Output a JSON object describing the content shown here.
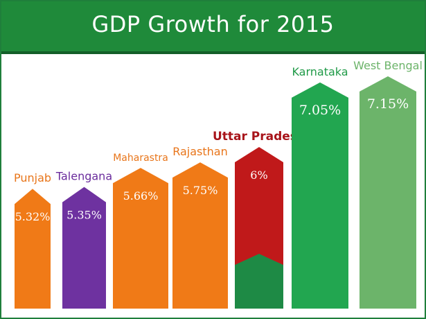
{
  "chart_data": {
    "type": "bar",
    "title": "GDP Growth for 2015",
    "categories": [
      "Punjab",
      "Talengana",
      "Maharastra",
      "Rajasthan",
      "Uttar Pradesh",
      "Karnataka",
      "West Bengal"
    ],
    "values": [
      5.32,
      5.35,
      5.66,
      5.75,
      6.0,
      7.05,
      7.15
    ],
    "value_labels": [
      "5.32%",
      "5.35%",
      "5.66%",
      "5.75%",
      "6%",
      "7.05%",
      "7.15%"
    ],
    "colors": [
      "#f07a17",
      "#6e32a0",
      "#f07a17",
      "#f07a17",
      "#c0191a",
      "#22a650",
      "#6cb46a"
    ],
    "label_colors": [
      "#e8751a",
      "#6a2c9c",
      "#e8751a",
      "#e8751a",
      "#a8141a",
      "#1f9a47",
      "#6cb46a"
    ],
    "xlabel": "",
    "ylabel": "",
    "grid": false,
    "legend": false
  }
}
